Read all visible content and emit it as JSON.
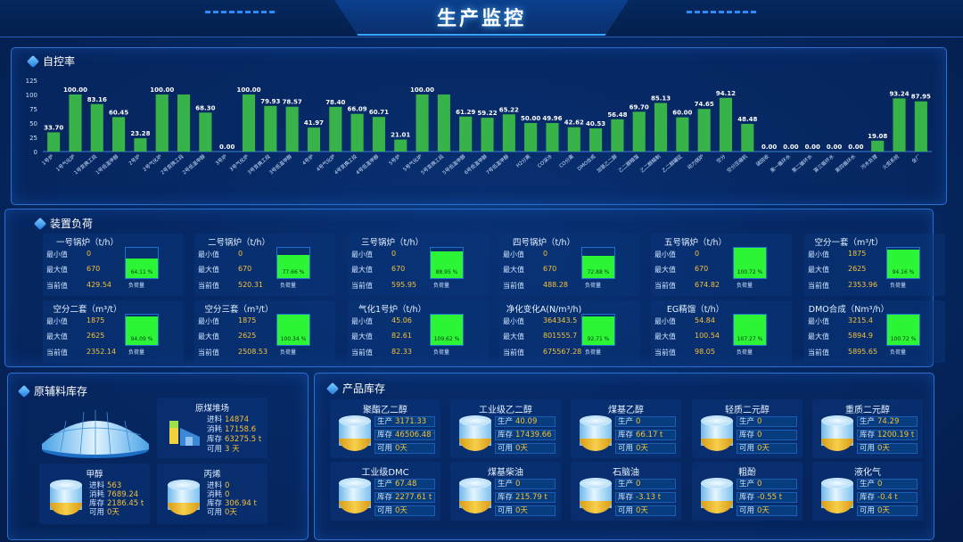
{
  "header": {
    "title": "生产监控"
  },
  "control_panel": {
    "title": "自控率"
  },
  "chart_data": {
    "type": "bar",
    "ylim": [
      0,
      125
    ],
    "yticks": [
      0,
      25,
      50,
      75,
      100,
      125
    ],
    "categories": [
      "1号炉",
      "1号气化炉",
      "1号变换工段",
      "1号低温甲醇",
      "2号炉",
      "2号气化炉",
      "2号变换工段",
      "2号低温甲醇",
      "3号炉",
      "3号气化炉",
      "3号变换工段",
      "3号低温甲醇",
      "4号炉",
      "4号气化炉",
      "4号变换工段",
      "4号低温甲醇",
      "5号炉",
      "5号气化炉",
      "5号变换工段",
      "5号低温甲醇",
      "6号低温甲醇",
      "7号低温甲醇",
      "H2分离",
      "CO深冷",
      "CO分离",
      "DMO合成",
      "加氢乙二醇",
      "乙二醇精馏",
      "乙二醇精制",
      "乙二醇罐区",
      "动力锅炉",
      "空分",
      "空分压缩机",
      "硫回收",
      "第一循环水",
      "第二循环水",
      "第三循环水",
      "第四循环水",
      "污水处理",
      "火炬系统",
      "全厂"
    ],
    "values": [
      33.7,
      100,
      83.16,
      60.45,
      23.28,
      100,
      100,
      68.3,
      0,
      100,
      79.93,
      78.57,
      41.97,
      78.4,
      66.09,
      60.71,
      21.01,
      100,
      100,
      61.29,
      59.22,
      65.22,
      50,
      49.96,
      42.62,
      40.53,
      56.48,
      69.7,
      85.13,
      60,
      74.65,
      94.12,
      48.48,
      0,
      0,
      0,
      0,
      0,
      19.08,
      93.24,
      87.95
    ],
    "labels": [
      "33.70",
      "100.00",
      "83.16",
      "60.45",
      "23.28",
      "100.00",
      "",
      "68.30",
      "0.00",
      "100.00",
      "79.93",
      "78.57",
      "41.97",
      "78.40",
      "66.09",
      "60.71",
      "21.01",
      "100.00",
      "",
      "61.29",
      "59.22",
      "65.22",
      "50.00",
      "49.96",
      "42.62",
      "40.53",
      "56.48",
      "69.70",
      "85.13",
      "60.00",
      "74.65",
      "94.12",
      "48.48",
      "0.00",
      "0.00",
      "0.00",
      "0.00",
      "0.00",
      "19.08",
      "93.24",
      "87.95"
    ],
    "bar_color": "#37b34a",
    "label_color": "#ffffff",
    "grid": false
  },
  "load_panel": {
    "title": "装置负荷",
    "min_label": "最小值",
    "max_label": "最大值",
    "cur_label": "当前值",
    "load_label": "负荷量",
    "cards": [
      {
        "name": "一号锅炉（t/h）",
        "min": "0",
        "max": "670",
        "cur": "429.54",
        "pct": "64.11",
        "frac": 0.6411
      },
      {
        "name": "二号锅炉（t/h）",
        "min": "0",
        "max": "670",
        "cur": "520.31",
        "pct": "77.66",
        "frac": 0.7766
      },
      {
        "name": "三号锅炉（t/h）",
        "min": "0",
        "max": "670",
        "cur": "595.95",
        "pct": "88.95",
        "frac": 0.8895
      },
      {
        "name": "四号锅炉（t/h）",
        "min": "0",
        "max": "670",
        "cur": "488.28",
        "pct": "72.88",
        "frac": 0.7288
      },
      {
        "name": "五号锅炉（t/h）",
        "min": "0",
        "max": "670",
        "cur": "674.82",
        "pct": "100.72",
        "frac": 1
      },
      {
        "name": "空分一套（m³/t）",
        "min": "1875",
        "max": "2625",
        "cur": "2353.96",
        "pct": "94.16",
        "frac": 0.9416
      },
      {
        "name": "空分二套（m³/t）",
        "min": "1875",
        "max": "2625",
        "cur": "2352.14",
        "pct": "94.09",
        "frac": 0.9409
      },
      {
        "name": "空分三套（m³/t）",
        "min": "1875",
        "max": "2625",
        "cur": "2508.53",
        "pct": "100.34",
        "frac": 1
      },
      {
        "name": "气化1号炉（t/h）",
        "min": "45.06",
        "max": "82.61",
        "cur": "82.33",
        "pct": "109.62",
        "frac": 1
      },
      {
        "name": "净化变化A(N/m³/h)",
        "min": "364343.5",
        "max": "801555.7",
        "cur": "675567.28",
        "pct": "92.71",
        "frac": 0.9271
      },
      {
        "name": "EG精馏（t/h）",
        "min": "54.84",
        "max": "100.54",
        "cur": "98.05",
        "pct": "107.27",
        "frac": 1
      },
      {
        "name": "DMO合成（Nm³/h）",
        "min": "3215.4",
        "max": "5894.9",
        "cur": "5895.65",
        "pct": "100.72",
        "frac": 1
      }
    ]
  },
  "raw_panel": {
    "title": "原辅料库存",
    "coal": {
      "name": "原煤堆场",
      "in_label": "进料",
      "in": "14874",
      "out_label": "消耗",
      "out": "17158.6",
      "stock_label": "库存",
      "stock": "63275.5 t",
      "avail_label": "可用",
      "avail": "3 天"
    },
    "items": [
      {
        "name": "甲醇",
        "in": "563",
        "out": "7689.24",
        "stock": "2186.45 t",
        "avail": "0天"
      },
      {
        "name": "丙烯",
        "in": "0",
        "out": "0",
        "stock": "306.94 t",
        "avail": "0天"
      }
    ],
    "in_label": "进料",
    "out_label": "消耗",
    "stock_label": "库存",
    "avail_label": "可用"
  },
  "product_panel": {
    "title": "产品库存",
    "prod_label": "生产",
    "stock_label": "库存",
    "avail_label": "可用",
    "items": [
      {
        "name": "聚酯乙二醇",
        "prod": "3171.33",
        "stock": "46506.48 t",
        "avail": "0天"
      },
      {
        "name": "工业级乙二醇",
        "prod": "40.09",
        "stock": "17439.66",
        "avail": "0天"
      },
      {
        "name": "煤基乙醇",
        "prod": "0",
        "stock": "66.17 t",
        "avail": "0天"
      },
      {
        "name": "轻质二元醇",
        "prod": "0",
        "stock": "0",
        "avail": "0天"
      },
      {
        "name": "重质二元醇",
        "prod": "74.29",
        "stock": "1200.19 t",
        "avail": "0天"
      },
      {
        "name": "工业级DMC",
        "prod": "67.48",
        "stock": "2277.61 t",
        "avail": "0天"
      },
      {
        "name": "煤基柴油",
        "prod": "0",
        "stock": "215.79 t",
        "avail": "0天"
      },
      {
        "name": "石脑油",
        "prod": "0",
        "stock": "-3.13 t",
        "avail": "0天"
      },
      {
        "name": "粗酚",
        "prod": "0",
        "stock": "-0.55 t",
        "avail": "0天"
      },
      {
        "name": "液化气",
        "prod": "0",
        "stock": "-0.4 t",
        "avail": "0天"
      }
    ]
  }
}
